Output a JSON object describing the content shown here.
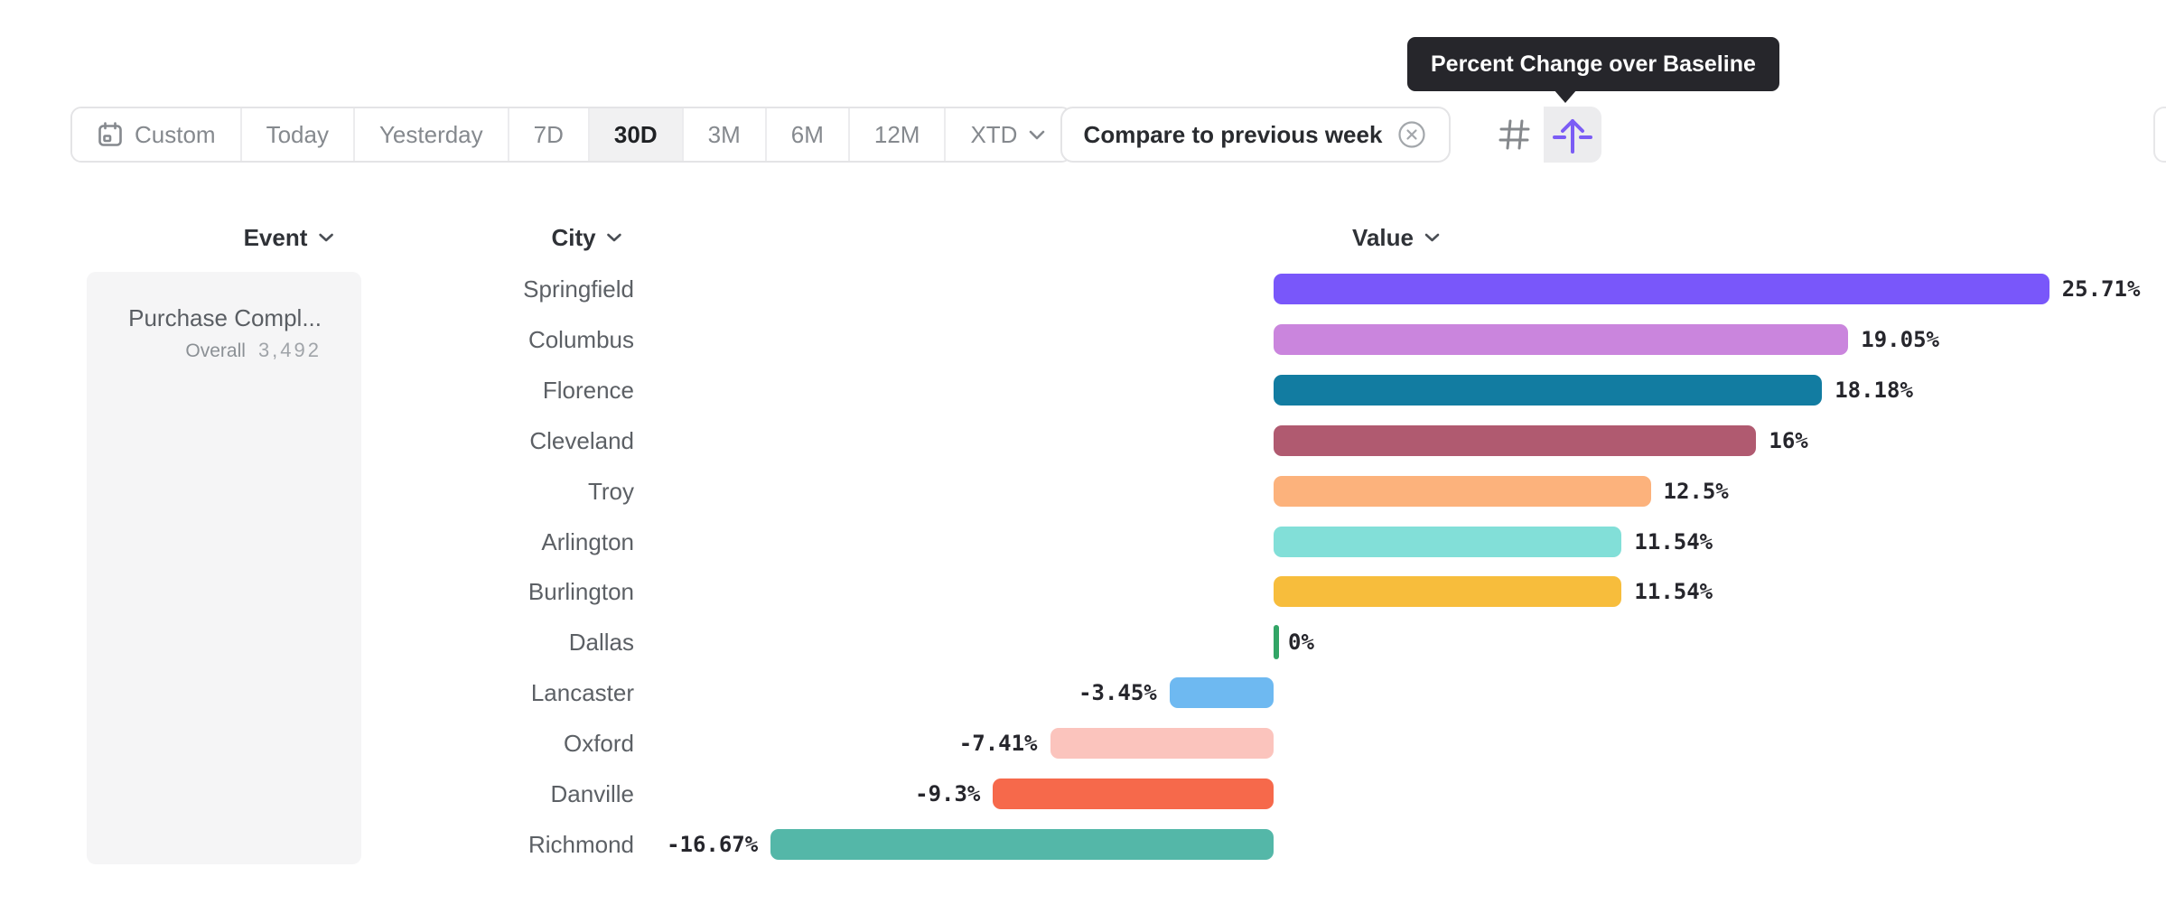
{
  "tooltip": {
    "text": "Percent Change over Baseline"
  },
  "toolbar": {
    "date_range": [
      "Custom",
      "Today",
      "Yesterday",
      "7D",
      "30D",
      "3M",
      "6M",
      "12M",
      "XTD"
    ],
    "selected_range": "30D",
    "compare_label": "Compare to previous week",
    "view_toggle": {
      "options": [
        "grid-view",
        "percent-change-over-baseline"
      ],
      "selected": "percent-change-over-baseline"
    }
  },
  "columns": [
    {
      "label": "Event"
    },
    {
      "label": "City"
    },
    {
      "label": "Value"
    }
  ],
  "event_card": {
    "name": "Purchase Compl...",
    "overall_label": "Overall",
    "overall_value": "3,492"
  },
  "chart_data": {
    "type": "bar",
    "orientation": "horizontal",
    "title": "Percent Change over Baseline",
    "unit": "%",
    "categories": [
      "Springfield",
      "Columbus",
      "Florence",
      "Cleveland",
      "Troy",
      "Arlington",
      "Burlington",
      "Dallas",
      "Lancaster",
      "Oxford",
      "Danville",
      "Richmond"
    ],
    "values": [
      25.71,
      19.05,
      18.18,
      16,
      12.5,
      11.54,
      11.54,
      0,
      -3.45,
      -7.41,
      -9.3,
      -16.67
    ],
    "labels": [
      "25.71%",
      "19.05%",
      "18.18%",
      "16%",
      "12.5%",
      "11.54%",
      "11.54%",
      "0%",
      "-3.45%",
      "-7.41%",
      "-9.3%",
      "-16.67%"
    ],
    "colors": [
      "#7957fa",
      "#ca85dd",
      "#127ca1",
      "#b05a70",
      "#fcb27c",
      "#82dfd8",
      "#f7bd3c",
      "#32a566",
      "#6eb9f1",
      "#fbc4bd",
      "#f6694b",
      "#54b7a8"
    ],
    "zero_tick_color": "#32a566",
    "xlim": [
      -16.67,
      25.71
    ],
    "grid": false,
    "legend": false
  },
  "ui_colors": {
    "accent_purple": "#7b5cf5",
    "tooltip_bg": "#26262b",
    "selected_segment_bg": "#f1f1f2",
    "card_bg": "#f5f5f6",
    "border": "#e4e4e6",
    "muted_text": "#85898e"
  }
}
